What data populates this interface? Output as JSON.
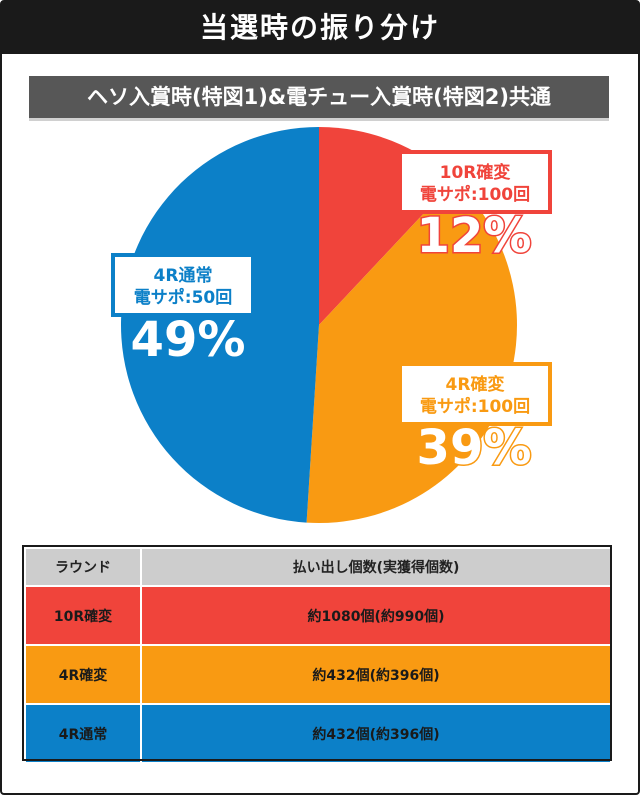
{
  "header": {
    "title": "当選時の振り分け"
  },
  "subtitle": "ヘソ入賞時(特図1)&電チュー入賞時(特図2)共通",
  "chart_data": {
    "type": "pie",
    "slices": [
      {
        "label_line1": "10R確変",
        "label_line2": "電サポ:100回",
        "value": 12,
        "value_label": "12%",
        "color": "#f0443b"
      },
      {
        "label_line1": "4R確変",
        "label_line2": "電サポ:100回",
        "value": 39,
        "value_label": "39%",
        "color": "#f99a12"
      },
      {
        "label_line1": "4R通常",
        "label_line2": "電サポ:50回",
        "value": 49,
        "value_label": "49%",
        "color": "#0c80c8"
      }
    ]
  },
  "table": {
    "headers": [
      "ラウンド",
      "払い出し個数(実獲得個数)"
    ],
    "rows": [
      {
        "round": "10R確変",
        "payout": "約1080個(約990個)"
      },
      {
        "round": "4R確変",
        "payout": "約432個(約396個)"
      },
      {
        "round": "4R通常",
        "payout": "約432個(約396個)"
      }
    ]
  }
}
